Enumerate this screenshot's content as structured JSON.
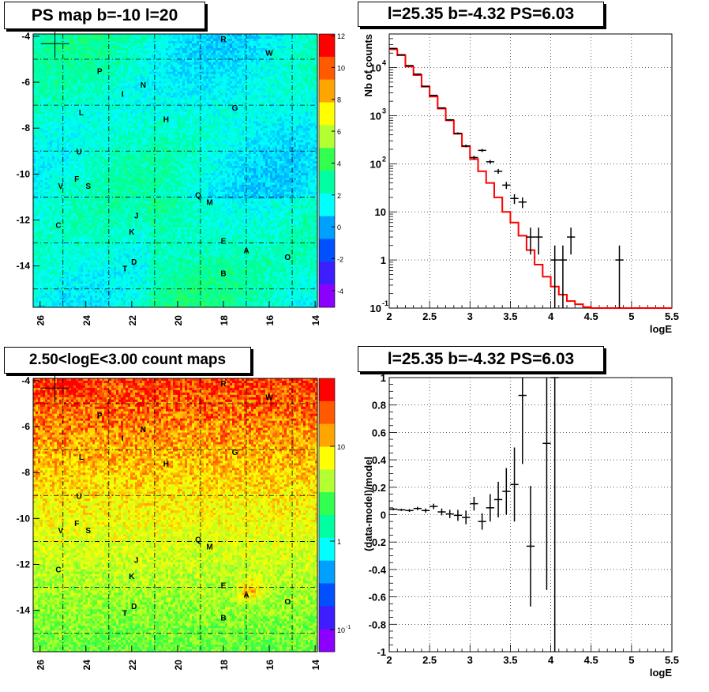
{
  "panels": {
    "ps_map": {
      "title": "PS map b=-10 l=20",
      "x_ticks": [
        "26",
        "24",
        "22",
        "20",
        "18",
        "16",
        "14"
      ],
      "y_ticks": [
        "-4",
        "-6",
        "-8",
        "-10",
        "-12",
        "-14"
      ],
      "colorbar_ticks": [
        "12",
        "10",
        "8",
        "6",
        "4",
        "2",
        "0",
        "-2",
        "-4"
      ],
      "colorbar_colors": [
        "#ff0000",
        "#ff5a00",
        "#ffa500",
        "#ffff00",
        "#b4ff32",
        "#32ff50",
        "#00ffa0",
        "#00ffff",
        "#00a0ff",
        "#0050ff",
        "#3c1eff",
        "#8c00ff"
      ]
    },
    "spectrum": {
      "title": "l=25.35 b=-4.32 PS=6.03"
    },
    "count_map": {
      "title": "2.50<logE<3.00 count maps",
      "x_ticks": [
        "26",
        "24",
        "22",
        "20",
        "18",
        "16",
        "14"
      ],
      "y_ticks": [
        "-4",
        "-6",
        "-8",
        "-10",
        "-12",
        "-14"
      ],
      "colorbar_ticks": [
        "10",
        "1",
        "10"
      ],
      "colorbar_tick_sup": "-1",
      "colorbar_colors": [
        "#ff0000",
        "#ff5a00",
        "#ffa500",
        "#ffff00",
        "#b4ff32",
        "#32ff50",
        "#00ffa0",
        "#00ffff",
        "#00a0ff",
        "#0050ff",
        "#3c1eff",
        "#8c00ff"
      ]
    },
    "residuals": {
      "title": "l=25.35 b=-4.32 PS=6.03"
    }
  },
  "source_labels": [
    "R",
    "W",
    "P",
    "N",
    "I",
    "L",
    "G",
    "H",
    "U",
    "F",
    "V",
    "S",
    "Q",
    "M",
    "J",
    "C",
    "K",
    "E",
    "A",
    "O",
    "D",
    "T",
    "B"
  ],
  "chart_data": [
    {
      "type": "heatmap",
      "title": "PS map b=-10 l=20",
      "xlabel": "",
      "ylabel": "",
      "xlim": [
        26.3,
        13.9
      ],
      "ylim": [
        -15.8,
        -3.9
      ],
      "zlim": [
        -5,
        12
      ],
      "x_reversed": true,
      "grid": true,
      "sources": [
        {
          "name": "R",
          "l": 18.0,
          "b": -4.1
        },
        {
          "name": "W",
          "l": 16.0,
          "b": -4.7
        },
        {
          "name": "P",
          "l": 23.4,
          "b": -5.5
        },
        {
          "name": "N",
          "l": 21.5,
          "b": -6.1
        },
        {
          "name": "I",
          "l": 22.4,
          "b": -6.5
        },
        {
          "name": "L",
          "l": 24.2,
          "b": -7.3
        },
        {
          "name": "G",
          "l": 17.5,
          "b": -7.1
        },
        {
          "name": "H",
          "l": 20.5,
          "b": -7.6
        },
        {
          "name": "U",
          "l": 24.3,
          "b": -9.0
        },
        {
          "name": "F",
          "l": 24.4,
          "b": -10.2
        },
        {
          "name": "V",
          "l": 25.1,
          "b": -10.5
        },
        {
          "name": "S",
          "l": 23.9,
          "b": -10.5
        },
        {
          "name": "Q",
          "l": 19.1,
          "b": -10.9
        },
        {
          "name": "M",
          "l": 18.6,
          "b": -11.2
        },
        {
          "name": "J",
          "l": 21.8,
          "b": -11.8
        },
        {
          "name": "C",
          "l": 25.2,
          "b": -12.2
        },
        {
          "name": "K",
          "l": 22.0,
          "b": -12.5
        },
        {
          "name": "E",
          "l": 18.0,
          "b": -12.9
        },
        {
          "name": "A",
          "l": 17.0,
          "b": -13.3
        },
        {
          "name": "O",
          "l": 15.2,
          "b": -13.6
        },
        {
          "name": "D",
          "l": 21.9,
          "b": -13.8
        },
        {
          "name": "T",
          "l": 22.3,
          "b": -14.1
        },
        {
          "name": "B",
          "l": 18.0,
          "b": -14.3
        }
      ],
      "marker": {
        "l": 25.35,
        "b": -4.32
      }
    },
    {
      "type": "line",
      "title": "l=25.35 b=-4.32 PS=6.03",
      "xlabel": "logE",
      "ylabel": "Nb of counts",
      "xlim": [
        2,
        5.5
      ],
      "ylim": [
        0.1,
        50000
      ],
      "yscale": "log",
      "grid": true,
      "series": [
        {
          "style": "step",
          "color": "#ff0000",
          "x": [
            2.0,
            2.1,
            2.2,
            2.3,
            2.4,
            2.5,
            2.6,
            2.7,
            2.8,
            2.9,
            3.0,
            3.1,
            3.2,
            3.3,
            3.4,
            3.5,
            3.6,
            3.7,
            3.8,
            3.9,
            4.0,
            4.1,
            4.2,
            4.3,
            4.4,
            4.5,
            4.6,
            4.7,
            4.8,
            4.9,
            5.0,
            5.1,
            5.2,
            5.3,
            5.4
          ],
          "y": [
            24000,
            18000,
            10500,
            7000,
            4000,
            2500,
            1400,
            800,
            420,
            230,
            125,
            70,
            40,
            20,
            10,
            6,
            3.2,
            1.6,
            0.8,
            0.45,
            0.28,
            0.19,
            0.14,
            0.12,
            0.105,
            0.1,
            0.1,
            0.1,
            0.1,
            0.1,
            0.1,
            0.1,
            0.1,
            0.1,
            0.1
          ]
        },
        {
          "style": "errorbar",
          "color": "#000000",
          "x": [
            2.05,
            2.15,
            2.25,
            2.35,
            2.45,
            2.55,
            2.65,
            2.75,
            2.85,
            2.95,
            3.05,
            3.15,
            3.25,
            3.35,
            3.45,
            3.55,
            3.65,
            3.75,
            3.85,
            4.05,
            4.15,
            4.25,
            4.85
          ],
          "y": [
            25000,
            18500,
            11000,
            7300,
            4100,
            2650,
            1450,
            820,
            430,
            235,
            135,
            190,
            110,
            70,
            36,
            19,
            16,
            3,
            3,
            1,
            1,
            3,
            1
          ],
          "yerr_lo": [
            160,
            140,
            105,
            85,
            64,
            51,
            38,
            29,
            21,
            15,
            12,
            14,
            10,
            8,
            6,
            4.4,
            4,
            1.7,
            1.7,
            0.999,
            0.999,
            1.7,
            0.999
          ],
          "yerr_hi": [
            160,
            140,
            105,
            85,
            64,
            51,
            38,
            29,
            21,
            15,
            12,
            14,
            10,
            8,
            6,
            4.4,
            4,
            1.7,
            1.7,
            1.0,
            1.0,
            1.7,
            1.0
          ]
        }
      ]
    },
    {
      "type": "heatmap",
      "title": "2.50<logE<3.00 count maps",
      "xlabel": "",
      "ylabel": "",
      "xlim": [
        26.3,
        13.9
      ],
      "ylim": [
        -15.8,
        -3.9
      ],
      "zscale": "log",
      "zlim": [
        0.05,
        40
      ],
      "x_reversed": true,
      "grid": true,
      "marker": {
        "l": 25.35,
        "b": -4.32
      }
    },
    {
      "type": "scatter",
      "title": "l=25.35 b=-4.32 PS=6.03",
      "xlabel": "logE",
      "ylabel": "(data-model)/model",
      "xlim": [
        2,
        5.5
      ],
      "ylim": [
        -1,
        1
      ],
      "grid": true,
      "series": [
        {
          "style": "errorbar",
          "color": "#000000",
          "x": [
            2.05,
            2.15,
            2.25,
            2.35,
            2.45,
            2.55,
            2.65,
            2.75,
            2.85,
            2.95,
            3.05,
            3.15,
            3.25,
            3.35,
            3.45,
            3.55,
            3.65,
            3.75,
            3.95,
            4.05
          ],
          "y": [
            0.04,
            0.035,
            0.03,
            0.045,
            0.03,
            0.06,
            0.02,
            0.005,
            -0.005,
            -0.02,
            0.08,
            -0.05,
            0.05,
            0.11,
            0.17,
            0.22,
            0.87,
            -0.23,
            0.52,
            1.0
          ],
          "yerr": [
            0.008,
            0.008,
            0.01,
            0.012,
            0.015,
            0.02,
            0.025,
            0.03,
            0.04,
            0.05,
            0.05,
            0.06,
            0.1,
            0.13,
            0.17,
            0.27,
            0.5,
            0.44,
            1.07,
            2.0
          ]
        }
      ]
    }
  ]
}
